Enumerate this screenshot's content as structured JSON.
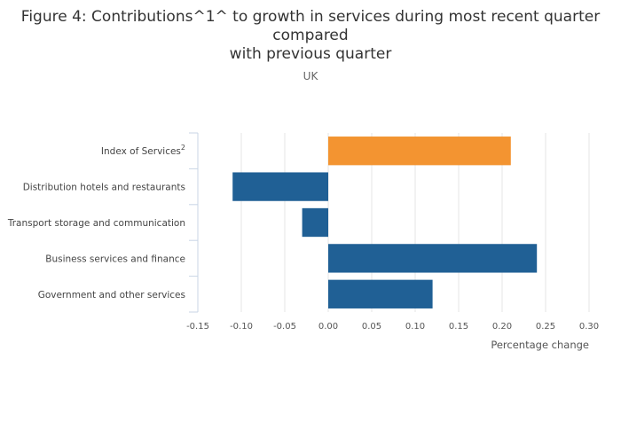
{
  "chart_data": {
    "type": "bar",
    "orientation": "horizontal",
    "title_lines": [
      "Figure 4: Contributions^1^ to growth in services during most recent quarter",
      "compared",
      "with previous quarter"
    ],
    "subtitle": "UK",
    "categories": [
      "Index of Services",
      "Distribution hotels and restaurants",
      "Transport storage and communication",
      "Business services and finance",
      "Government and other services"
    ],
    "category_superscripts": [
      "2",
      "",
      "",
      "",
      ""
    ],
    "values": [
      0.21,
      -0.11,
      -0.03,
      0.24,
      0.12
    ],
    "bar_colors": [
      "#f39431",
      "#206095",
      "#206095",
      "#206095",
      "#206095"
    ],
    "xlabel": "Percentage change",
    "ylabel": "",
    "xlim": [
      -0.15,
      0.3
    ],
    "xticks": [
      -0.15,
      -0.1,
      -0.05,
      0.0,
      0.05,
      0.1,
      0.15,
      0.2,
      0.25,
      0.3
    ],
    "xtick_labels": [
      "-0.15",
      "-0.10",
      "-0.05",
      "0.00",
      "0.05",
      "0.10",
      "0.15",
      "0.20",
      "0.25",
      "0.30"
    ],
    "grid": true,
    "legend": false
  }
}
